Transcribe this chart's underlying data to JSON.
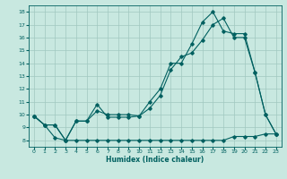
{
  "xlabel": "Humidex (Indice chaleur)",
  "background_color": "#c8e8e0",
  "grid_color": "#a0c8c0",
  "line_color": "#006060",
  "xlim": [
    -0.5,
    23.5
  ],
  "ylim": [
    7.5,
    18.5
  ],
  "yticks": [
    8,
    9,
    10,
    11,
    12,
    13,
    14,
    15,
    16,
    17,
    18
  ],
  "xticks": [
    0,
    1,
    2,
    3,
    4,
    5,
    6,
    7,
    8,
    9,
    10,
    11,
    12,
    13,
    14,
    15,
    16,
    17,
    18,
    19,
    20,
    21,
    22,
    23
  ],
  "line1_x": [
    0,
    1,
    2,
    3,
    4,
    5,
    6,
    7,
    8,
    9,
    10,
    11,
    12,
    13,
    14,
    15,
    16,
    17,
    18,
    19,
    20,
    21,
    22,
    23
  ],
  "line1_y": [
    9.9,
    9.2,
    9.2,
    8.0,
    9.5,
    9.5,
    10.8,
    9.8,
    9.8,
    9.8,
    9.9,
    11.0,
    12.0,
    14.0,
    14.0,
    15.5,
    17.2,
    18.0,
    16.5,
    16.3,
    16.3,
    13.3,
    10.0,
    8.5
  ],
  "line2_x": [
    0,
    1,
    2,
    3,
    4,
    5,
    6,
    7,
    8,
    9,
    10,
    11,
    12,
    13,
    14,
    15,
    16,
    17,
    18,
    19,
    20,
    21,
    22,
    23
  ],
  "line2_y": [
    9.9,
    9.2,
    9.2,
    8.0,
    9.5,
    9.5,
    10.3,
    10.0,
    10.0,
    10.0,
    9.9,
    10.5,
    11.5,
    13.5,
    14.5,
    14.8,
    15.8,
    17.0,
    17.5,
    16.0,
    16.0,
    13.3,
    10.0,
    8.5
  ],
  "line3_x": [
    0,
    1,
    2,
    3,
    4,
    5,
    6,
    7,
    8,
    9,
    10,
    11,
    12,
    13,
    14,
    15,
    16,
    17,
    18,
    19,
    20,
    21,
    22,
    23
  ],
  "line3_y": [
    9.9,
    9.2,
    8.2,
    8.0,
    8.0,
    8.0,
    8.0,
    8.0,
    8.0,
    8.0,
    8.0,
    8.0,
    8.0,
    8.0,
    8.0,
    8.0,
    8.0,
    8.0,
    8.0,
    8.3,
    8.3,
    8.3,
    8.5,
    8.5
  ],
  "xlabel_fontsize": 5.5,
  "tick_fontsize": 4.5,
  "linewidth": 0.8,
  "markersize": 1.8
}
